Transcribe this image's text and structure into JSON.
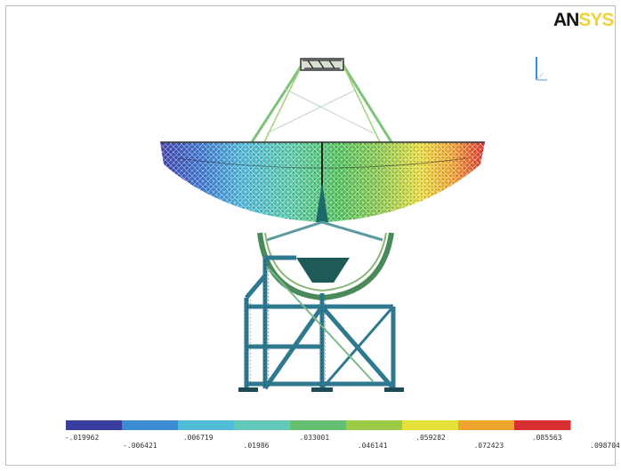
{
  "logo": {
    "part1": "AN",
    "part2": "SYS"
  },
  "colors": [
    "#3a3da0",
    "#3a8dd0",
    "#50bcd8",
    "#62c8b8",
    "#64c070",
    "#9ccc44",
    "#e6e03a",
    "#f0a430",
    "#d83030"
  ],
  "contour_labels": [
    "-.019962",
    "-.006421",
    ".006719",
    ".01986",
    ".033001",
    ".046141",
    ".059282",
    ".072423",
    ".085563",
    ".098704"
  ]
}
